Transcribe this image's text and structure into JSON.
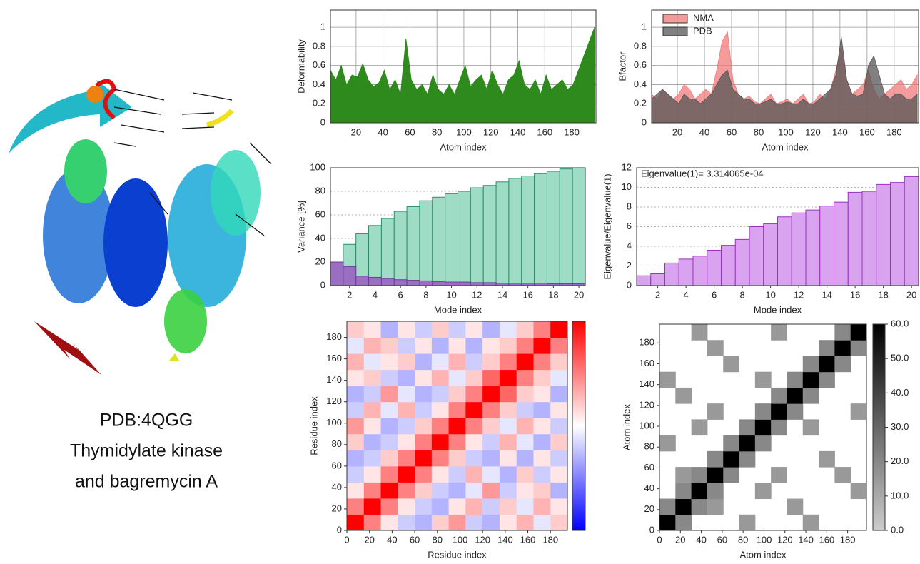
{
  "caption": [
    "PDB:4QGG",
    "Thymidylate kinase",
    "and bagremycin A"
  ],
  "chart_data": [
    {
      "type": "area",
      "ylabel": "Deformability",
      "xlabel": "Atom index",
      "grid": true,
      "x": [
        1,
        5,
        9,
        13,
        17,
        21,
        25,
        29,
        33,
        37,
        41,
        45,
        49,
        53,
        57,
        61,
        65,
        69,
        73,
        77,
        81,
        85,
        89,
        93,
        97,
        101,
        105,
        109,
        113,
        117,
        121,
        125,
        129,
        133,
        137,
        141,
        145,
        149,
        153,
        157,
        161,
        165,
        169,
        173,
        177,
        181,
        185,
        189,
        193,
        197
      ],
      "series": [
        {
          "color": "#2f8a1e",
          "values": [
            0.55,
            0.45,
            0.6,
            0.4,
            0.5,
            0.48,
            0.62,
            0.45,
            0.38,
            0.42,
            0.55,
            0.35,
            0.45,
            0.3,
            0.88,
            0.45,
            0.35,
            0.4,
            0.3,
            0.5,
            0.35,
            0.3,
            0.4,
            0.3,
            0.45,
            0.6,
            0.38,
            0.45,
            0.5,
            0.35,
            0.55,
            0.4,
            0.3,
            0.45,
            0.5,
            0.65,
            0.4,
            0.35,
            0.45,
            0.3,
            0.5,
            0.35,
            0.4,
            0.45,
            0.35,
            0.4,
            0.55,
            0.7,
            0.85,
            1.0
          ]
        }
      ],
      "xlim": [
        1,
        198
      ],
      "ylim": [
        0,
        1.18
      ],
      "xticks": [
        20,
        40,
        60,
        80,
        100,
        120,
        140,
        160,
        180
      ],
      "yticks": [
        0,
        0.2,
        0.4,
        0.6,
        0.8,
        1
      ]
    },
    {
      "type": "area",
      "ylabel": "Bfactor",
      "xlabel": "Atom index",
      "grid": true,
      "legend": "upper left",
      "x": [
        1,
        5,
        9,
        13,
        17,
        21,
        25,
        29,
        33,
        37,
        41,
        45,
        49,
        53,
        57,
        61,
        65,
        69,
        73,
        77,
        81,
        85,
        89,
        93,
        97,
        101,
        105,
        109,
        113,
        117,
        121,
        125,
        129,
        133,
        137,
        141,
        145,
        149,
        153,
        157,
        161,
        165,
        169,
        173,
        177,
        181,
        185,
        189,
        193,
        197
      ],
      "series": [
        {
          "name": "NMA",
          "color": "#f07a7a",
          "values": [
            0.3,
            0.25,
            0.35,
            0.3,
            0.25,
            0.3,
            0.4,
            0.35,
            0.25,
            0.3,
            0.35,
            0.3,
            0.55,
            0.85,
            0.95,
            0.45,
            0.3,
            0.25,
            0.28,
            0.22,
            0.2,
            0.25,
            0.3,
            0.2,
            0.22,
            0.25,
            0.2,
            0.25,
            0.3,
            0.2,
            0.22,
            0.3,
            0.25,
            0.35,
            0.55,
            0.8,
            0.45,
            0.3,
            0.35,
            0.4,
            0.55,
            0.35,
            0.25,
            0.3,
            0.35,
            0.4,
            0.45,
            0.35,
            0.4,
            0.5
          ]
        },
        {
          "name": "PDB",
          "color": "#555555",
          "values": [
            0.25,
            0.3,
            0.35,
            0.3,
            0.25,
            0.2,
            0.3,
            0.25,
            0.25,
            0.2,
            0.25,
            0.3,
            0.4,
            0.5,
            0.55,
            0.35,
            0.3,
            0.25,
            0.25,
            0.2,
            0.2,
            0.22,
            0.25,
            0.2,
            0.2,
            0.22,
            0.2,
            0.2,
            0.25,
            0.2,
            0.2,
            0.25,
            0.3,
            0.35,
            0.5,
            0.9,
            0.45,
            0.3,
            0.28,
            0.3,
            0.6,
            0.7,
            0.5,
            0.3,
            0.25,
            0.3,
            0.3,
            0.25,
            0.25,
            0.3
          ]
        }
      ],
      "xlim": [
        1,
        198
      ],
      "ylim": [
        0,
        1.18
      ],
      "xticks": [
        20,
        40,
        60,
        80,
        100,
        120,
        140,
        160,
        180
      ],
      "yticks": [
        0,
        0.2,
        0.4,
        0.6,
        0.8,
        1
      ]
    },
    {
      "type": "bar",
      "ylabel": "Variance [%]",
      "xlabel": "Mode index",
      "grid": "y",
      "x": [
        1,
        2,
        3,
        4,
        5,
        6,
        7,
        8,
        9,
        10,
        11,
        12,
        13,
        14,
        15,
        16,
        17,
        18,
        19,
        20
      ],
      "series": [
        {
          "color": "#9fdcc6",
          "edge": "#2e8b6e",
          "values": [
            20,
            35,
            44,
            51,
            57,
            63,
            67,
            72,
            75,
            78,
            80,
            83,
            85,
            88,
            91,
            93,
            95,
            97,
            99,
            100
          ]
        },
        {
          "color": "#9a6fc2",
          "edge": "#6a3d9a",
          "values": [
            20,
            16,
            8,
            7,
            6,
            5,
            4.5,
            4,
            3.5,
            3,
            3,
            2.5,
            2.5,
            2,
            2,
            2,
            2,
            1.5,
            1.5,
            1.5
          ]
        }
      ],
      "xlim": [
        0.5,
        20.5
      ],
      "ylim": [
        0,
        100
      ],
      "xticks": [
        2,
        4,
        6,
        8,
        10,
        12,
        14,
        16,
        18,
        20
      ],
      "yticks": [
        0,
        20,
        40,
        60,
        80,
        100
      ]
    },
    {
      "type": "bar",
      "ylabel": "Eigenvalue/Eigenvalue(1)",
      "xlabel": "Mode index",
      "grid": "y",
      "annotation": "Eigenvalue(1)= 3.314065e-04",
      "x": [
        1,
        2,
        3,
        4,
        5,
        6,
        7,
        8,
        9,
        10,
        11,
        12,
        13,
        14,
        15,
        16,
        17,
        18,
        19,
        20
      ],
      "series": [
        {
          "color": "#d9a3f0",
          "edge": "#9a30c0",
          "values": [
            1,
            1.2,
            2.3,
            2.7,
            3.0,
            3.6,
            4.1,
            4.7,
            6.0,
            6.3,
            7.0,
            7.4,
            7.7,
            8.1,
            8.5,
            9.5,
            9.6,
            10.3,
            10.5,
            11.1
          ]
        }
      ],
      "xlim": [
        0.5,
        20.5
      ],
      "ylim": [
        0,
        12
      ],
      "xticks": [
        2,
        4,
        6,
        8,
        10,
        12,
        14,
        16,
        18,
        20
      ],
      "yticks": [
        0,
        2,
        4,
        6,
        8,
        10,
        12
      ]
    },
    {
      "type": "heatmap",
      "xlabel": "Residue index",
      "ylabel": "Residue index",
      "colors": [
        "#0000ff",
        "#ffffff",
        "#ff0000"
      ],
      "clim": [
        -1,
        1
      ],
      "xlim": [
        0,
        195
      ],
      "ylim": [
        0,
        195
      ],
      "xticks": [
        0,
        20,
        40,
        60,
        80,
        100,
        120,
        140,
        160,
        180
      ],
      "yticks": [
        0,
        20,
        40,
        60,
        80,
        100,
        120,
        140,
        160,
        180
      ],
      "z": [
        [
          1,
          0.5,
          0.1,
          -0.2,
          -0.3,
          0.2,
          0.4,
          -0.2,
          -0.3,
          0.1,
          0.3,
          -0.1,
          0.2
        ],
        [
          0.5,
          1,
          0.5,
          0.1,
          -0.2,
          -0.3,
          0.1,
          0.3,
          -0.2,
          0.2,
          -0.1,
          0.3,
          0.1
        ],
        [
          0.1,
          0.5,
          1,
          0.5,
          0.2,
          -0.2,
          -0.3,
          -0.1,
          0.4,
          -0.2,
          0.1,
          0.2,
          -0.3
        ],
        [
          -0.2,
          0.1,
          0.5,
          1,
          0.5,
          0.1,
          -0.2,
          0.3,
          -0.1,
          -0.3,
          0.2,
          -0.2,
          0.1
        ],
        [
          -0.3,
          -0.2,
          0.2,
          0.5,
          1,
          0.5,
          0.2,
          -0.2,
          -0.3,
          0.1,
          -0.3,
          0.1,
          -0.2
        ],
        [
          0.2,
          -0.3,
          -0.2,
          0.1,
          0.5,
          1,
          0.5,
          0.1,
          -0.2,
          0.3,
          -0.1,
          -0.3,
          0.2
        ],
        [
          0.4,
          0.1,
          -0.3,
          -0.2,
          0.2,
          0.5,
          1,
          0.5,
          0.2,
          -0.1,
          0.3,
          0.1,
          -0.2
        ],
        [
          -0.2,
          0.3,
          -0.1,
          0.3,
          -0.2,
          0.1,
          0.5,
          1,
          0.5,
          0.2,
          -0.2,
          -0.3,
          0.1
        ],
        [
          -0.3,
          -0.2,
          0.4,
          -0.1,
          -0.3,
          -0.2,
          0.2,
          0.5,
          1,
          0.6,
          0.2,
          0.1,
          -0.3
        ],
        [
          0.1,
          0.2,
          -0.2,
          -0.3,
          0.1,
          0.3,
          -0.1,
          0.2,
          0.6,
          1,
          0.5,
          0.2,
          -0.1
        ],
        [
          0.3,
          -0.1,
          0.1,
          0.2,
          -0.3,
          -0.1,
          0.3,
          -0.2,
          0.2,
          0.5,
          1,
          0.5,
          0.2
        ],
        [
          -0.1,
          0.3,
          0.2,
          -0.2,
          0.1,
          -0.3,
          0.1,
          -0.3,
          0.1,
          0.2,
          0.5,
          1,
          0.5
        ],
        [
          0.2,
          0.1,
          -0.3,
          0.1,
          -0.2,
          0.2,
          -0.2,
          0.1,
          -0.3,
          -0.1,
          0.2,
          0.5,
          1
        ]
      ]
    },
    {
      "type": "heatmap",
      "xlabel": "Atom index",
      "ylabel": "Atom index",
      "colors": [
        "#cccccc",
        "#000000"
      ],
      "clim": [
        0,
        60
      ],
      "cbticks": [
        {
          "value": 0,
          "label": "0.0"
        },
        {
          "value": 10,
          "label": "10.0"
        },
        {
          "value": 20,
          "label": "20.0"
        },
        {
          "value": 30,
          "label": "30.0"
        },
        {
          "value": 40,
          "label": "40.0"
        },
        {
          "value": 50,
          "label": "50.0"
        },
        {
          "value": 60,
          "label": "60.0"
        }
      ],
      "xlim": [
        0,
        198
      ],
      "ylim": [
        0,
        198
      ],
      "xticks": [
        0,
        20,
        40,
        60,
        80,
        100,
        120,
        140,
        160,
        180
      ],
      "yticks": [
        0,
        20,
        40,
        60,
        80,
        100,
        120,
        140,
        160,
        180
      ],
      "z": [
        [
          60,
          20,
          null,
          null,
          null,
          15,
          null,
          null,
          null,
          15,
          null,
          null,
          null
        ],
        [
          20,
          60,
          20,
          15,
          null,
          null,
          null,
          null,
          15,
          null,
          null,
          null,
          null
        ],
        [
          null,
          20,
          60,
          20,
          null,
          null,
          15,
          null,
          null,
          null,
          null,
          null,
          15
        ],
        [
          null,
          15,
          20,
          60,
          20,
          null,
          null,
          15,
          null,
          null,
          null,
          15,
          null
        ],
        [
          null,
          null,
          null,
          20,
          60,
          20,
          null,
          null,
          null,
          null,
          15,
          null,
          null
        ],
        [
          15,
          null,
          null,
          null,
          20,
          60,
          20,
          null,
          null,
          null,
          null,
          null,
          null
        ],
        [
          null,
          null,
          15,
          null,
          null,
          20,
          60,
          20,
          null,
          15,
          null,
          null,
          null
        ],
        [
          null,
          null,
          null,
          15,
          null,
          null,
          20,
          60,
          20,
          null,
          null,
          null,
          15
        ],
        [
          null,
          15,
          null,
          null,
          null,
          null,
          null,
          20,
          60,
          20,
          null,
          null,
          null
        ],
        [
          15,
          null,
          null,
          null,
          null,
          null,
          15,
          null,
          20,
          60,
          20,
          null,
          null
        ],
        [
          null,
          null,
          null,
          null,
          15,
          null,
          null,
          null,
          null,
          20,
          60,
          20,
          null
        ],
        [
          null,
          null,
          null,
          15,
          null,
          null,
          null,
          null,
          null,
          null,
          20,
          60,
          20
        ],
        [
          null,
          null,
          15,
          null,
          null,
          null,
          null,
          15,
          null,
          null,
          null,
          20,
          60
        ]
      ]
    }
  ]
}
